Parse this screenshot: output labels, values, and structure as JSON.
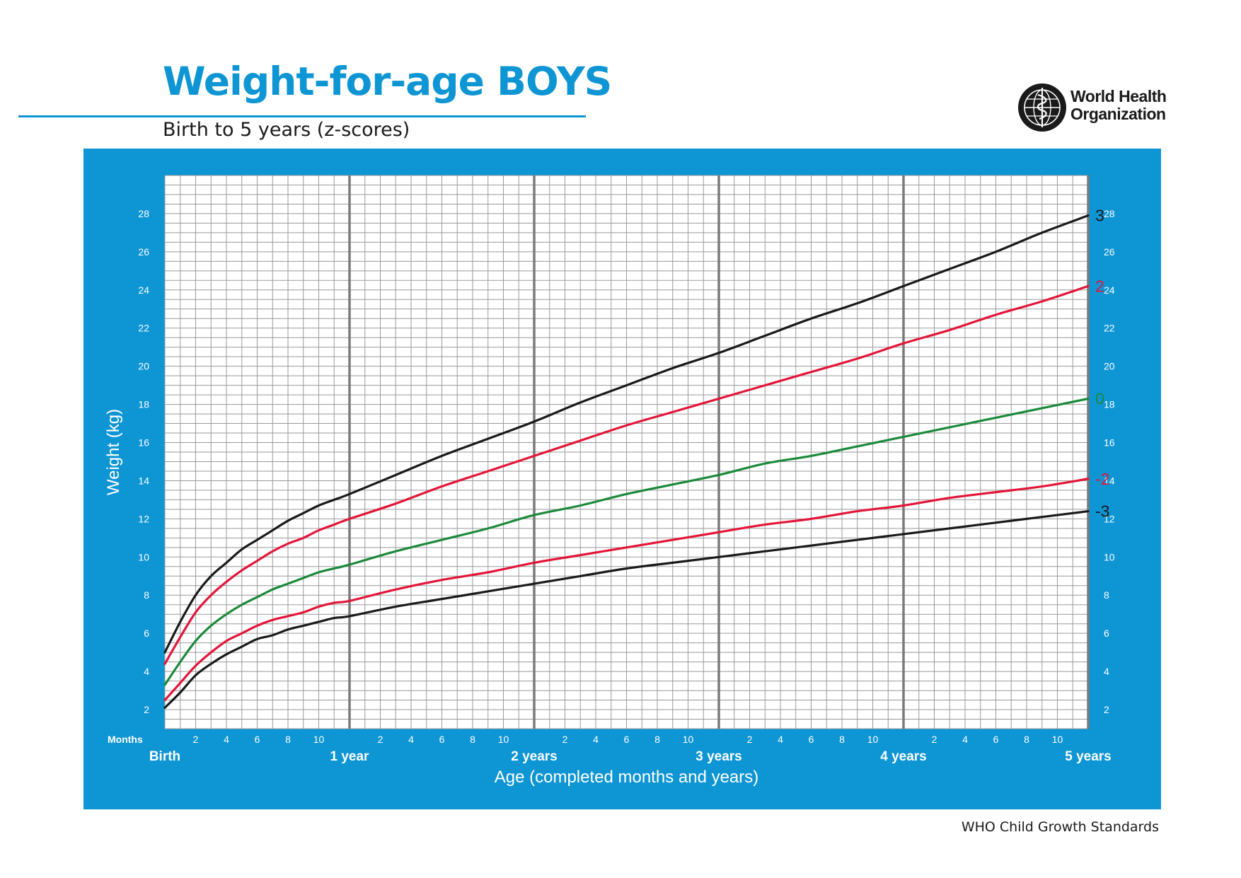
{
  "header": {
    "title": "Weight-for-age BOYS",
    "subtitle": "Birth to 5 years (z-scores)",
    "org_line1": "World Health",
    "org_line2": "Organization",
    "logo_icon": "who-emblem-icon"
  },
  "footer": {
    "text": "WHO Child Growth Standards"
  },
  "colors": {
    "brand_blue": "#0e95d4",
    "grid_minor": "#999999",
    "grid_major": "#7a7a7a",
    "z3": "#1a1a1a",
    "z2": "#e3163a",
    "z0": "#1c8a3c"
  },
  "chart_data": {
    "type": "line",
    "title": "Weight-for-age BOYS",
    "subtitle": "Birth to 5 years (z-scores)",
    "xlabel": "Age (completed months and years)",
    "ylabel": "Weight (kg)",
    "months_label": "Months",
    "xlim": [
      0,
      60
    ],
    "ylim": [
      1,
      30
    ],
    "y_ticks": [
      2,
      4,
      6,
      8,
      10,
      12,
      14,
      16,
      18,
      20,
      22,
      24,
      26,
      28
    ],
    "month_ticks": [
      "2",
      "4",
      "6",
      "8",
      "10"
    ],
    "year_labels": [
      {
        "month": 0,
        "label": "Birth"
      },
      {
        "month": 12,
        "label": "1 year"
      },
      {
        "month": 24,
        "label": "2 years"
      },
      {
        "month": 36,
        "label": "3 years"
      },
      {
        "month": 48,
        "label": "4 years"
      },
      {
        "month": 60,
        "label": "5 years"
      }
    ],
    "grid": true,
    "x": [
      0,
      1,
      2,
      3,
      4,
      5,
      6,
      7,
      8,
      9,
      10,
      11,
      12,
      15,
      18,
      21,
      24,
      27,
      30,
      33,
      36,
      39,
      42,
      45,
      48,
      51,
      54,
      57,
      60
    ],
    "series": [
      {
        "name": "3",
        "color": "#1a1a1a",
        "values": [
          5.0,
          6.6,
          8.0,
          9.0,
          9.7,
          10.4,
          10.9,
          11.4,
          11.9,
          12.3,
          12.7,
          13.0,
          13.3,
          14.3,
          15.3,
          16.2,
          17.1,
          18.1,
          19.0,
          19.9,
          20.7,
          21.6,
          22.5,
          23.3,
          24.2,
          25.1,
          26.0,
          27.0,
          27.9
        ]
      },
      {
        "name": "2",
        "color": "#e3163a",
        "values": [
          4.4,
          5.8,
          7.1,
          8.0,
          8.7,
          9.3,
          9.8,
          10.3,
          10.7,
          11.0,
          11.4,
          11.7,
          12.0,
          12.8,
          13.7,
          14.5,
          15.3,
          16.1,
          16.9,
          17.6,
          18.3,
          19.0,
          19.7,
          20.4,
          21.2,
          21.9,
          22.7,
          23.4,
          24.2
        ]
      },
      {
        "name": "0",
        "color": "#1c8a3c",
        "values": [
          3.3,
          4.5,
          5.6,
          6.4,
          7.0,
          7.5,
          7.9,
          8.3,
          8.6,
          8.9,
          9.2,
          9.4,
          9.6,
          10.3,
          10.9,
          11.5,
          12.2,
          12.7,
          13.3,
          13.8,
          14.3,
          14.9,
          15.3,
          15.8,
          16.3,
          16.8,
          17.3,
          17.8,
          18.3
        ]
      },
      {
        "name": "-2",
        "color": "#e3163a",
        "values": [
          2.5,
          3.4,
          4.3,
          5.0,
          5.6,
          6.0,
          6.4,
          6.7,
          6.9,
          7.1,
          7.4,
          7.6,
          7.7,
          8.3,
          8.8,
          9.2,
          9.7,
          10.1,
          10.5,
          10.9,
          11.3,
          11.7,
          12.0,
          12.4,
          12.7,
          13.1,
          13.4,
          13.7,
          14.1
        ]
      },
      {
        "name": "-3",
        "color": "#1a1a1a",
        "values": [
          2.1,
          2.9,
          3.8,
          4.4,
          4.9,
          5.3,
          5.7,
          5.9,
          6.2,
          6.4,
          6.6,
          6.8,
          6.9,
          7.4,
          7.8,
          8.2,
          8.6,
          9.0,
          9.4,
          9.7,
          10.0,
          10.3,
          10.6,
          10.9,
          11.2,
          11.5,
          11.8,
          12.1,
          12.4
        ]
      }
    ]
  }
}
